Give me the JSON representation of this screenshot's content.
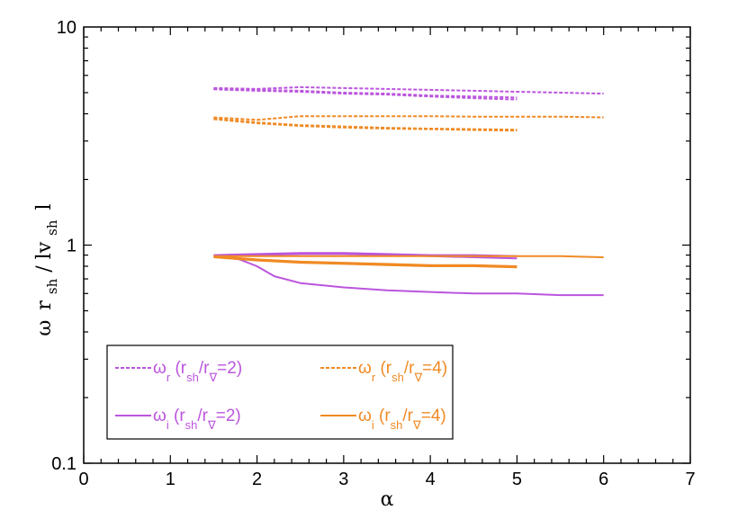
{
  "chart_data": {
    "type": "line",
    "xlabel": "α",
    "ylabel_parts": {
      "omega": "ω",
      "r": "r",
      "sh1": "sh",
      "sep": " / ",
      "absv": "lv",
      "sh2": "sh",
      "tail": "l"
    },
    "xlim": [
      0,
      7
    ],
    "ylim": [
      0.1,
      10
    ],
    "yscale": "log",
    "x_ticks": [
      "0",
      "1",
      "2",
      "3",
      "4",
      "5",
      "6",
      "7"
    ],
    "y_ticks": [
      "0.1",
      "1",
      "10"
    ],
    "colors": {
      "purple": "#BB55DD",
      "orange": "#F08A24"
    },
    "series": [
      {
        "name": "ω_r (r_sh/r_∇=2)",
        "color": "purple",
        "style": "dashed",
        "x": [
          1.5,
          2.0,
          2.5,
          3.0,
          3.5,
          4.0,
          4.5,
          5.0,
          5.5,
          6.0
        ],
        "y": [
          5.25,
          5.2,
          5.3,
          5.25,
          5.2,
          5.15,
          5.1,
          5.05,
          5.0,
          4.95
        ]
      },
      {
        "name": "ω_r (r_sh/r_∇=2)",
        "color": "purple",
        "style": "dashed",
        "x": [
          1.5,
          2.0,
          2.5,
          3.0,
          3.5,
          4.0,
          4.5,
          5.0
        ],
        "y": [
          5.2,
          5.15,
          5.1,
          5.0,
          4.95,
          4.85,
          4.8,
          4.75
        ]
      },
      {
        "name": "ω_r (r_sh/r_∇=2)",
        "color": "purple",
        "style": "dashed",
        "x": [
          1.5,
          2.0,
          2.5,
          3.0,
          3.5,
          4.0,
          4.5,
          5.0
        ],
        "y": [
          5.18,
          5.1,
          5.05,
          4.95,
          4.9,
          4.8,
          4.72,
          4.65
        ]
      },
      {
        "name": "ω_r (r_sh/r_∇=4)",
        "color": "orange",
        "style": "dashed",
        "x": [
          1.5,
          2.0,
          2.5,
          3.0,
          3.5,
          4.0,
          4.5,
          5.0,
          5.5,
          6.0
        ],
        "y": [
          3.85,
          3.75,
          3.9,
          3.9,
          3.9,
          3.9,
          3.88,
          3.88,
          3.88,
          3.85
        ]
      },
      {
        "name": "ω_r (r_sh/r_∇=4)",
        "color": "orange",
        "style": "dashed",
        "x": [
          1.5,
          2.0,
          2.5,
          3.0,
          3.5,
          4.0,
          4.5,
          5.0
        ],
        "y": [
          3.8,
          3.65,
          3.55,
          3.5,
          3.45,
          3.42,
          3.4,
          3.38
        ]
      },
      {
        "name": "ω_r (r_sh/r_∇=4)",
        "color": "orange",
        "style": "dashed",
        "x": [
          1.5,
          2.0,
          2.5,
          3.0,
          3.5,
          4.0,
          4.5,
          5.0
        ],
        "y": [
          3.78,
          3.62,
          3.52,
          3.46,
          3.42,
          3.4,
          3.37,
          3.35
        ]
      },
      {
        "name": "ω_i (r_sh/r_∇=2)",
        "color": "purple",
        "style": "solid",
        "x": [
          1.5,
          2.0,
          2.5,
          3.0,
          3.5,
          4.0,
          4.5,
          5.0
        ],
        "y": [
          0.9,
          0.91,
          0.92,
          0.92,
          0.91,
          0.9,
          0.9,
          0.89
        ]
      },
      {
        "name": "ω_i (r_sh/r_∇=2)",
        "color": "purple",
        "style": "solid",
        "x": [
          1.5,
          2.0,
          2.5,
          3.0,
          3.5,
          4.0,
          4.5,
          5.0
        ],
        "y": [
          0.89,
          0.9,
          0.91,
          0.91,
          0.9,
          0.89,
          0.88,
          0.87
        ]
      },
      {
        "name": "ω_i (r_sh/r_∇=2)",
        "color": "purple",
        "style": "solid",
        "x": [
          1.5,
          1.8,
          2.0,
          2.2,
          2.5,
          3.0,
          3.5,
          4.0,
          4.5,
          5.0,
          5.5,
          6.0
        ],
        "y": [
          0.89,
          0.86,
          0.8,
          0.72,
          0.67,
          0.64,
          0.62,
          0.61,
          0.6,
          0.6,
          0.59,
          0.59
        ]
      },
      {
        "name": "ω_i (r_sh/r_∇=4)",
        "color": "orange",
        "style": "solid",
        "x": [
          1.5,
          2.0,
          2.5,
          3.0,
          3.5,
          4.0,
          4.5,
          5.0,
          5.5,
          6.0
        ],
        "y": [
          0.89,
          0.89,
          0.89,
          0.89,
          0.89,
          0.89,
          0.89,
          0.89,
          0.89,
          0.88
        ]
      },
      {
        "name": "ω_i (r_sh/r_∇=4)",
        "color": "orange",
        "style": "solid",
        "x": [
          1.5,
          2.0,
          2.5,
          3.0,
          3.5,
          4.0,
          4.5,
          5.0
        ],
        "y": [
          0.89,
          0.86,
          0.84,
          0.83,
          0.82,
          0.81,
          0.81,
          0.8
        ]
      },
      {
        "name": "ω_i (r_sh/r_∇=4)",
        "color": "orange",
        "style": "solid",
        "x": [
          1.5,
          2.0,
          2.5,
          3.0,
          3.5,
          4.0,
          4.5,
          5.0
        ],
        "y": [
          0.88,
          0.85,
          0.83,
          0.82,
          0.81,
          0.8,
          0.8,
          0.79
        ]
      }
    ],
    "legend": {
      "placement": "bottom-left",
      "entries": [
        {
          "sym": "ω",
          "sub": "r",
          "open": " (r",
          "sh": "sh",
          "slash": "/r",
          "nabla": "∇",
          "ratio": "=2)",
          "color": "purple",
          "style": "dashed"
        },
        {
          "sym": "ω",
          "sub": "r",
          "open": " (r",
          "sh": "sh",
          "slash": "/r",
          "nabla": "∇",
          "ratio": "=4)",
          "color": "orange",
          "style": "dashed"
        },
        {
          "sym": "ω",
          "sub": "i",
          "open": " (r",
          "sh": "sh",
          "slash": "/r",
          "nabla": "∇",
          "ratio": "=2)",
          "color": "purple",
          "style": "solid"
        },
        {
          "sym": "ω",
          "sub": "i",
          "open": " (r",
          "sh": "sh",
          "slash": "/r",
          "nabla": "∇",
          "ratio": "=4)",
          "color": "orange",
          "style": "solid"
        }
      ]
    }
  }
}
